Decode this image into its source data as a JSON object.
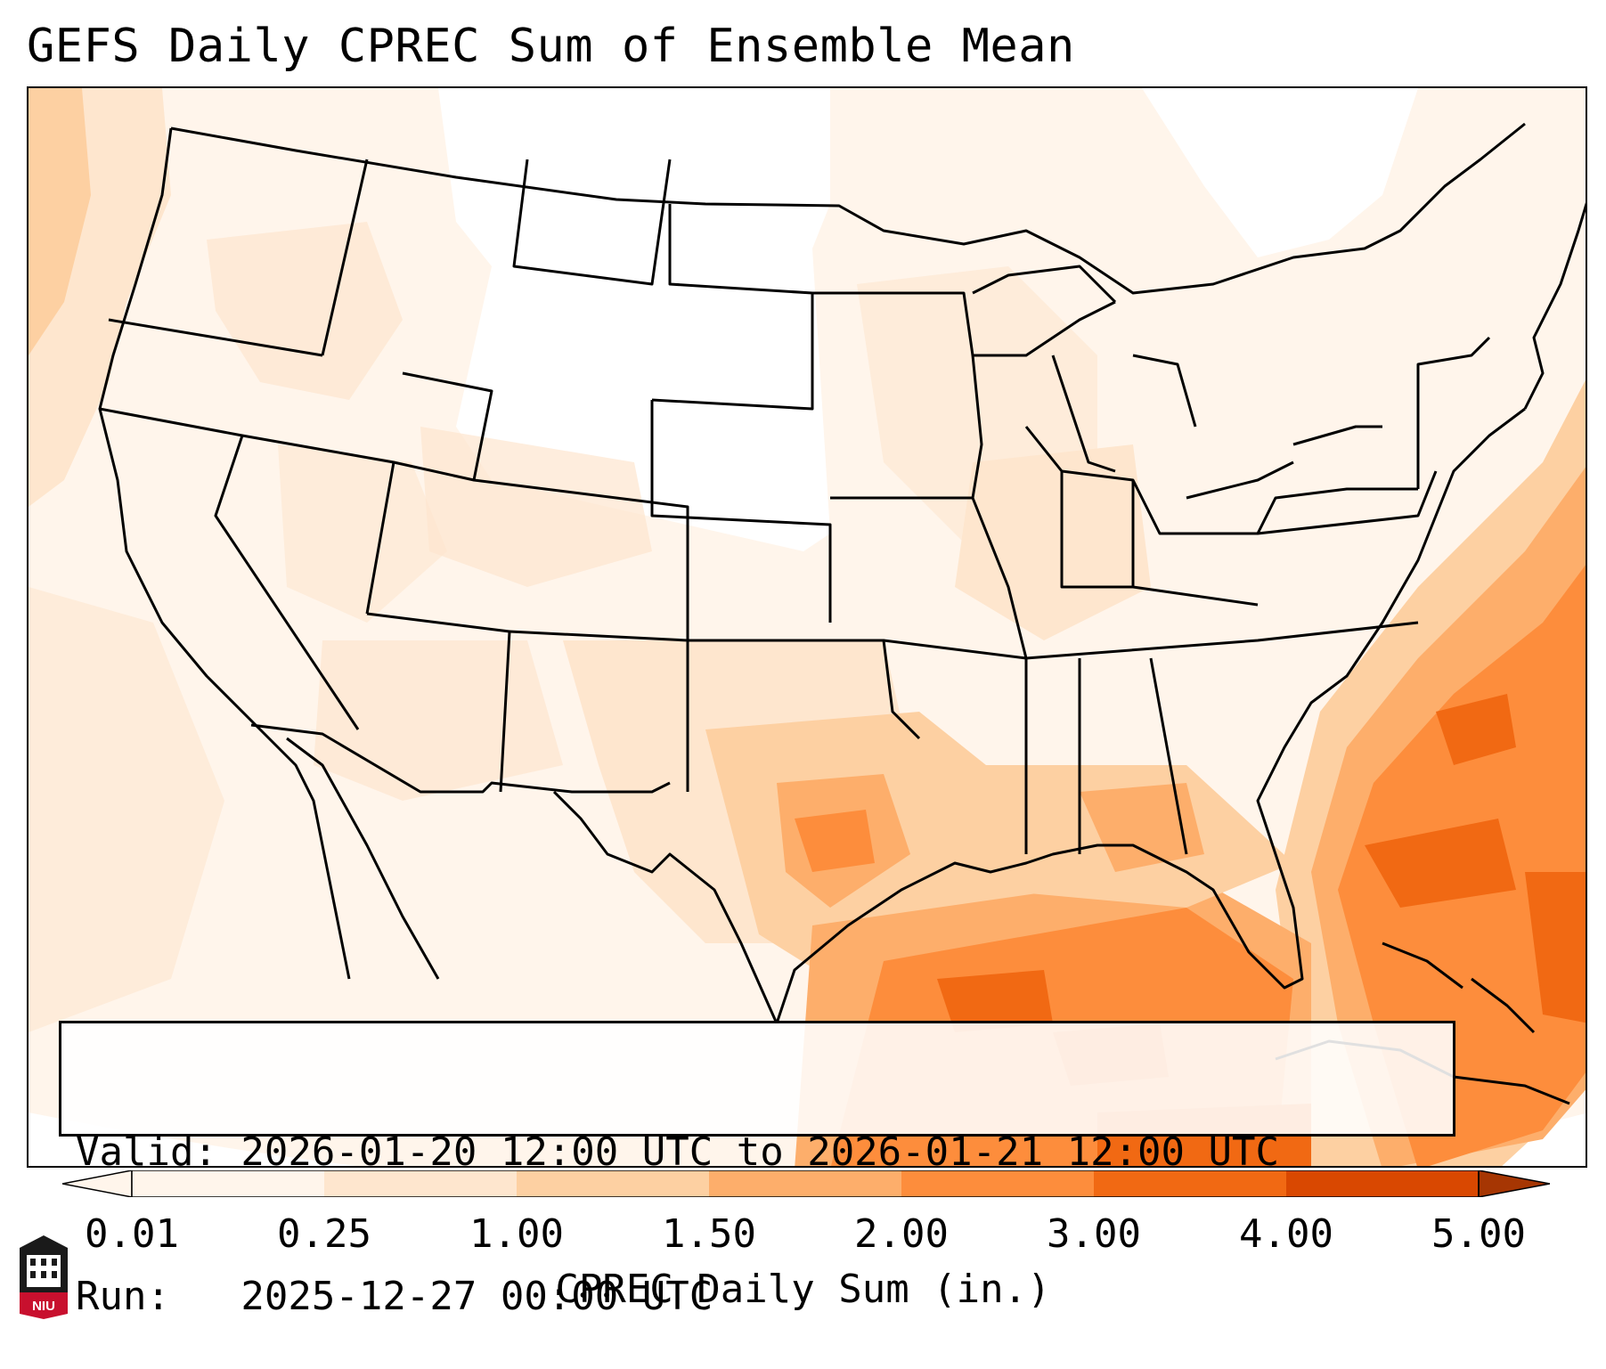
{
  "title": "GEFS Daily CPREC Sum of Ensemble Mean",
  "info": {
    "valid_line": "Valid: 2026-01-20 12:00 UTC to 2026-01-21 12:00 UTC",
    "run_line": "Run:   2025-12-27 00:00 UTC"
  },
  "colorbar": {
    "label": "CPREC Daily Sum (in.)",
    "ticks": [
      "0.01",
      "0.25",
      "1.00",
      "1.50",
      "2.00",
      "3.00",
      "4.00",
      "5.00"
    ],
    "colors": [
      "#fff5eb",
      "#fee6ce",
      "#fdd0a2",
      "#fdae6b",
      "#fd8d3c",
      "#f16913",
      "#d94801",
      "#a63603"
    ],
    "extend": "both"
  },
  "map": {
    "region": "CONUS",
    "field": "CPREC daily sum, inches",
    "background_color": "#fff5eb",
    "boundary_color": "#000000"
  },
  "logo": {
    "text": "NIU",
    "color": "#c8102e"
  }
}
